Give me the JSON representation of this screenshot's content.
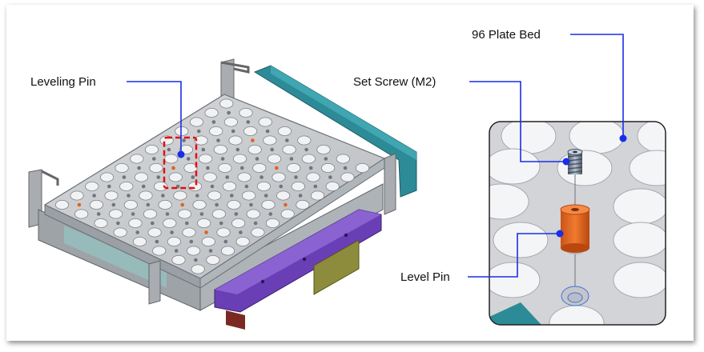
{
  "labels": {
    "leveling_pin": "Leveling Pin",
    "plate_bed": "96 Plate Bed",
    "set_screw": "Set Screw (M2)",
    "level_pin": "Level Pin"
  },
  "colors": {
    "callout_line": "#1a2ee6",
    "highlight_box": "#e01010",
    "plate": "#c9cccf",
    "teal_handle": "#2c8b96",
    "purple_bracket": "#6a3fb5",
    "orange_pin": "#e0621e",
    "olive_block": "#8c8c3c"
  },
  "icons": [
    "leveling-pin-highlight-box",
    "callout-dot"
  ]
}
